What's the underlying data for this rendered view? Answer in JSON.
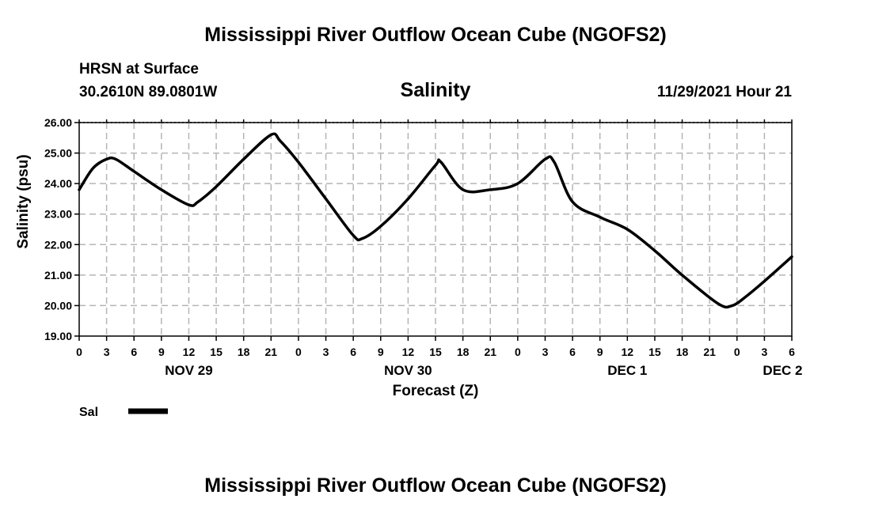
{
  "header": {
    "title": "Mississippi River Outflow Ocean Cube (NGOFS2)",
    "station": "HRSN at Surface",
    "coords": "30.2610N  89.0801W",
    "datetime": "11/29/2021 Hour 21"
  },
  "footer": {
    "title": "Mississippi River Outflow Ocean Cube (NGOFS2)"
  },
  "chart_data": {
    "type": "line",
    "title": "Salinity",
    "xlabel": "Forecast (Z)",
    "ylabel": "Salinity (psu)",
    "ylim": [
      19.0,
      26.0
    ],
    "xlim_hours": [
      0,
      78
    ],
    "grid": true,
    "x_ticks": [
      0,
      3,
      6,
      9,
      12,
      15,
      18,
      21,
      24,
      27,
      30,
      33,
      36,
      39,
      42,
      45,
      48,
      51,
      54,
      57,
      60,
      63,
      66,
      69,
      72,
      75,
      78
    ],
    "x_tick_labels": [
      "0",
      "3",
      "6",
      "9",
      "12",
      "15",
      "18",
      "21",
      "0",
      "3",
      "6",
      "9",
      "12",
      "15",
      "18",
      "21",
      "0",
      "3",
      "6",
      "9",
      "12",
      "15",
      "18",
      "21",
      "0",
      "3",
      "6"
    ],
    "y_ticks": [
      19.0,
      20.0,
      21.0,
      22.0,
      23.0,
      24.0,
      25.0,
      26.0
    ],
    "y_tick_labels": [
      "19.00",
      "20.00",
      "21.00",
      "22.00",
      "23.00",
      "24.00",
      "25.00",
      "26.00"
    ],
    "date_labels": [
      {
        "label": "NOV 29",
        "hour": 12
      },
      {
        "label": "NOV 30",
        "hour": 36
      },
      {
        "label": "DEC 1",
        "hour": 60
      },
      {
        "label": "DEC 2",
        "hour": 77
      }
    ],
    "legend": {
      "label": "Sal",
      "position": "bottom-left"
    },
    "series": [
      {
        "name": "Sal",
        "color": "#000000",
        "x": [
          0,
          1.5,
          3,
          4,
          6,
          9,
          12,
          13,
          15,
          18,
          21,
          22,
          24,
          27,
          30,
          31,
          33,
          36,
          39,
          39.6,
          42,
          45,
          48,
          51,
          52,
          54,
          57,
          60,
          63,
          66,
          70,
          71.5,
          73,
          75,
          78
        ],
        "values": [
          23.8,
          24.5,
          24.8,
          24.8,
          24.4,
          23.8,
          23.3,
          23.4,
          23.9,
          24.8,
          25.6,
          25.4,
          24.7,
          23.5,
          22.3,
          22.2,
          22.6,
          23.5,
          24.6,
          24.7,
          23.8,
          23.8,
          24.0,
          24.8,
          24.7,
          23.4,
          22.9,
          22.5,
          21.8,
          21.0,
          20.05,
          20.0,
          20.3,
          20.8,
          21.6
        ]
      }
    ]
  }
}
